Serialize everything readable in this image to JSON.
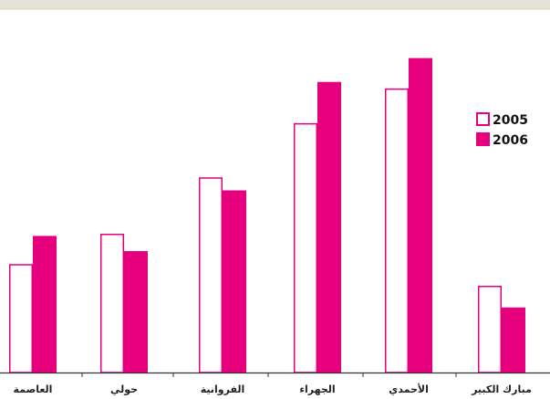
{
  "chart_data": {
    "type": "bar",
    "categories": [
      "العاصمة",
      "حولي",
      "الفروانية",
      "الجهراء",
      "الأحمدي",
      "مبارك الكبير"
    ],
    "series": [
      {
        "name": "2005",
        "values": [
          50,
          64,
          90,
          115,
          131,
          40
        ],
        "style": "outline"
      },
      {
        "name": "2006",
        "values": [
          63,
          56,
          84,
          134,
          145,
          30
        ],
        "style": "filled"
      }
    ],
    "ylim": [
      0,
      160
    ],
    "grid": false,
    "legend": {
      "position": "right"
    },
    "colors": {
      "accent": "#e6007e",
      "axis": "#333333",
      "band": "#e4e1d6"
    }
  }
}
